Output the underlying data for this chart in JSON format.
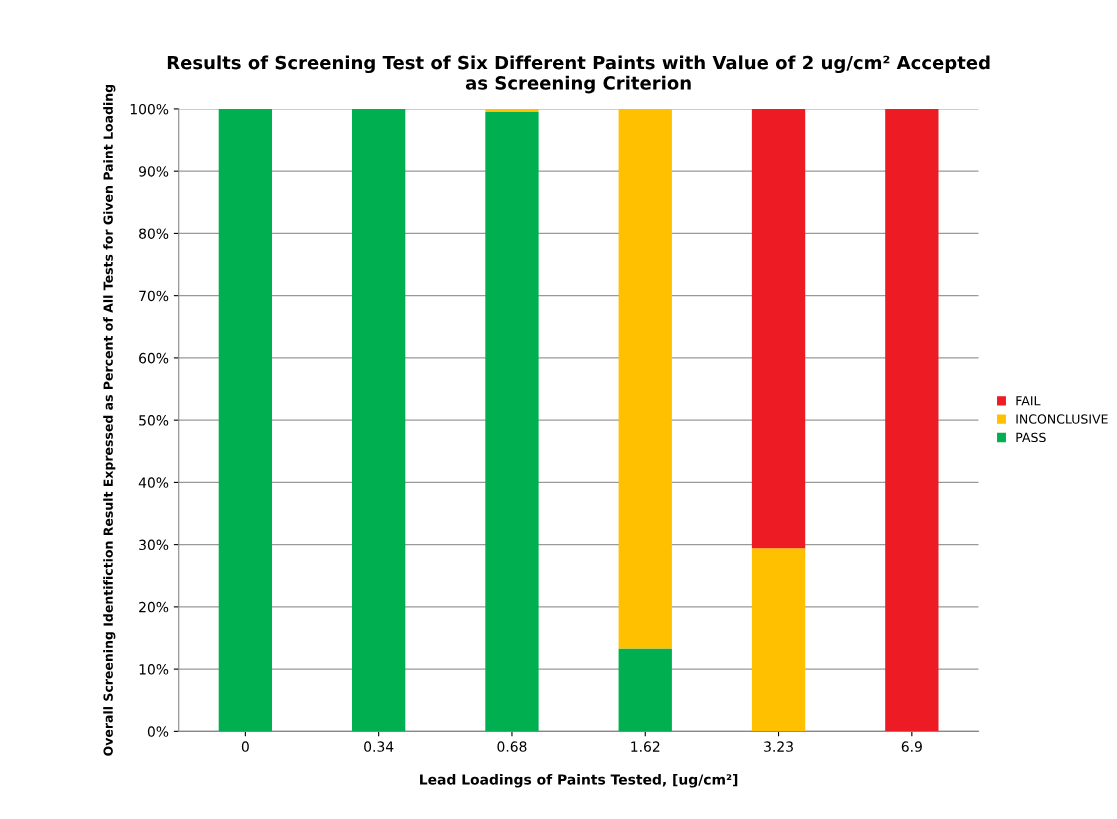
{
  "chart_data": {
    "type": "bar",
    "stacked": true,
    "title": "Results of Screening Test of Six Different Paints with Value of 2 ug/cm² Accepted\nas Screening Criterion",
    "xlabel": "Lead Loadings of Paints Tested, [ug/cm²]",
    "ylabel": "Overall Screening Identifiction Result Expressed as Percent of All Tests for Given Paint Loading",
    "categories": [
      "0",
      "0.34",
      "0.68",
      "1.62",
      "3.23",
      "6.9"
    ],
    "series": [
      {
        "name": "PASS",
        "color": "#00b050",
        "values": [
          100,
          100,
          99.5,
          13.3,
          0,
          0
        ]
      },
      {
        "name": "INCONCLUSIVE",
        "color": "#ffc000",
        "values": [
          0,
          0,
          0.5,
          86.7,
          29.4,
          0
        ]
      },
      {
        "name": "FAIL",
        "color": "#ed1c24",
        "values": [
          0,
          0,
          0,
          0,
          70.6,
          100
        ]
      }
    ],
    "ylim": [
      0,
      100
    ],
    "yticks": [
      {
        "value": 0,
        "label": "0%"
      },
      {
        "value": 10,
        "label": "10%"
      },
      {
        "value": 20,
        "label": "20%"
      },
      {
        "value": 30,
        "label": "30%"
      },
      {
        "value": 40,
        "label": "40%"
      },
      {
        "value": 50,
        "label": "50%"
      },
      {
        "value": 60,
        "label": "60%"
      },
      {
        "value": 70,
        "label": "70%"
      },
      {
        "value": 80,
        "label": "80%"
      },
      {
        "value": 90,
        "label": "90%"
      },
      {
        "value": 100,
        "label": "100%"
      }
    ],
    "grid": "y",
    "legend": "right"
  }
}
